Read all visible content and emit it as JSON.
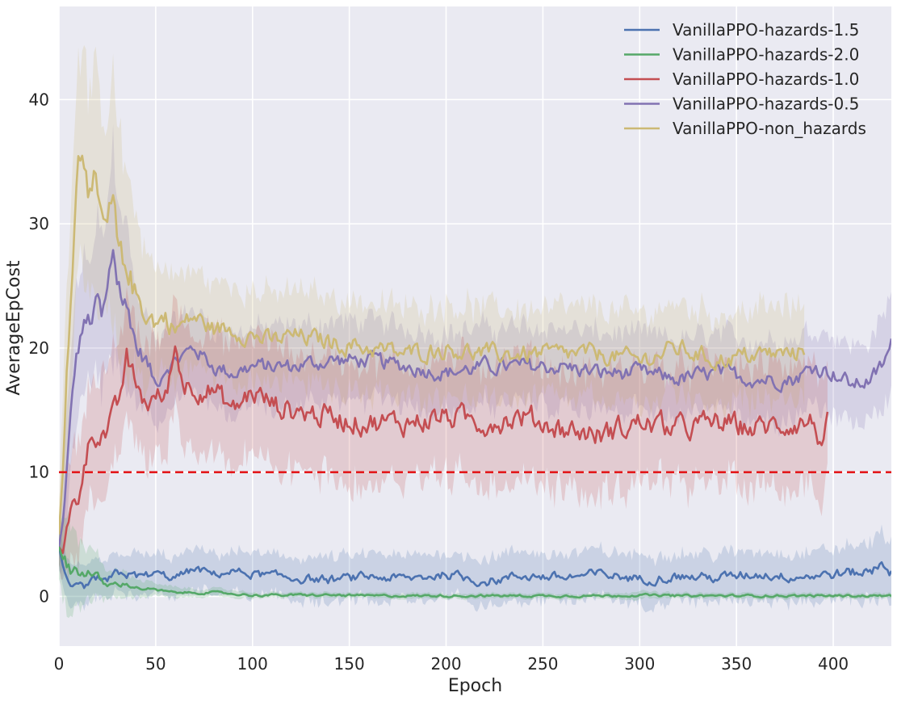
{
  "chart_data": {
    "type": "line",
    "title": "",
    "xlabel": "Epoch",
    "ylabel": "AverageEpCost",
    "xlim": [
      0,
      430
    ],
    "ylim": [
      -4,
      47.5
    ],
    "xticks": [
      0,
      50,
      100,
      150,
      200,
      250,
      300,
      350,
      400
    ],
    "yticks": [
      0,
      10,
      20,
      30,
      40
    ],
    "grid": true,
    "legend_position": "top-right",
    "reference_line": {
      "y": 10,
      "color": "#e3191c",
      "style": "dashed"
    },
    "colors": {
      "background": "#eaeaf2",
      "grid": "#ffffff"
    },
    "series": [
      {
        "name": "VanillaPPO-hazards-1.5",
        "color": "#4c72b0",
        "x": [
          0,
          2,
          4,
          6,
          8,
          10,
          15,
          20,
          25,
          30,
          35,
          40,
          50,
          60,
          70,
          80,
          90,
          100,
          120,
          140,
          160,
          180,
          200,
          220,
          240,
          260,
          280,
          300,
          320,
          340,
          360,
          380,
          400,
          420,
          425,
          430
        ],
        "y": [
          4,
          2.5,
          1.2,
          0.4,
          0.5,
          0.8,
          0.8,
          1.5,
          1.0,
          2.0,
          1.8,
          1.6,
          1.8,
          1.5,
          2.2,
          1.8,
          2.0,
          1.8,
          1.5,
          1.3,
          1.6,
          1.4,
          1.8,
          1.2,
          1.7,
          1.5,
          1.8,
          1.4,
          1.6,
          1.5,
          1.8,
          1.6,
          1.8,
          2.0,
          3.0,
          2.0
        ],
        "band": [
          1.8,
          1.8,
          1.6,
          1.5,
          1.5,
          1.5,
          1.5,
          1.6,
          1.6,
          1.6,
          1.6,
          1.6,
          1.5,
          1.5,
          1.5,
          1.5,
          1.5,
          1.6,
          1.6,
          1.7,
          1.7,
          1.7,
          1.7,
          1.8,
          1.8,
          1.8,
          1.8,
          1.8,
          1.8,
          1.8,
          1.8,
          1.8,
          1.9,
          2.2,
          2.5,
          2.2
        ]
      },
      {
        "name": "VanillaPPO-hazards-2.0",
        "color": "#55a868",
        "x": [
          0,
          2,
          4,
          6,
          8,
          10,
          15,
          20,
          25,
          30,
          35,
          40,
          50,
          60,
          70,
          80,
          90,
          100,
          120,
          140,
          160,
          180,
          200,
          220,
          240,
          260,
          280,
          300,
          320,
          340,
          360,
          380,
          400,
          420,
          430
        ],
        "y": [
          4,
          3.0,
          2.8,
          2.4,
          2.2,
          2.0,
          2.0,
          1.5,
          0.8,
          1.0,
          1.0,
          0.7,
          0.5,
          0.3,
          0.3,
          0.3,
          0.2,
          0.1,
          0.1,
          0.1,
          0.05,
          0.05,
          0.05,
          0.05,
          0.05,
          0.05,
          0.05,
          0.1,
          0.05,
          0.05,
          0.05,
          0.05,
          0.05,
          0.05,
          0.05
        ],
        "band": [
          2.0,
          3.0,
          3.5,
          3.5,
          3.0,
          2.5,
          2.0,
          1.6,
          1.2,
          1.0,
          0.9,
          0.7,
          0.5,
          0.4,
          0.3,
          0.3,
          0.3,
          0.2,
          0.2,
          0.2,
          0.2,
          0.2,
          0.2,
          0.2,
          0.2,
          0.2,
          0.2,
          0.3,
          0.2,
          0.2,
          0.2,
          0.2,
          0.2,
          0.2,
          0.2
        ]
      },
      {
        "name": "VanillaPPO-hazards-1.0",
        "color": "#c44e52",
        "x": [
          0,
          2,
          4,
          6,
          8,
          10,
          12,
          15,
          18,
          20,
          25,
          30,
          35,
          40,
          45,
          50,
          55,
          60,
          65,
          70,
          80,
          90,
          100,
          110,
          120,
          140,
          160,
          180,
          200,
          220,
          240,
          260,
          280,
          300,
          320,
          340,
          360,
          380,
          390,
          395,
          397
        ],
        "y": [
          4,
          3.5,
          5,
          6.5,
          7.5,
          8,
          10,
          12,
          13.2,
          13.2,
          13.2,
          15,
          19,
          17,
          15.5,
          16,
          16,
          20,
          17,
          17,
          16.5,
          15,
          16.5,
          15.5,
          15,
          14.5,
          14,
          14,
          14.5,
          14,
          14.5,
          13.5,
          13,
          14,
          13.5,
          14,
          13.5,
          14,
          14,
          12,
          13.5
        ],
        "band": [
          1.5,
          2.5,
          3.5,
          4.0,
          4.5,
          4.5,
          4.5,
          4.5,
          4.5,
          4.5,
          4.5,
          4.5,
          4.5,
          4.5,
          4.5,
          4.5,
          4.5,
          4.5,
          4.5,
          4.5,
          4.5,
          4.5,
          4.5,
          4.5,
          4.5,
          4.5,
          4.5,
          4.5,
          4.5,
          4.5,
          4.5,
          4.5,
          4.5,
          4.5,
          4.5,
          4.5,
          4.5,
          4.5,
          4.5,
          4.5,
          4.5
        ]
      },
      {
        "name": "VanillaPPO-hazards-0.5",
        "color": "#8172b2",
        "x": [
          0,
          2,
          4,
          6,
          8,
          10,
          12,
          15,
          18,
          20,
          22,
          25,
          28,
          30,
          33,
          35,
          38,
          40,
          45,
          50,
          55,
          60,
          70,
          80,
          90,
          100,
          120,
          140,
          160,
          180,
          200,
          220,
          240,
          260,
          280,
          300,
          320,
          340,
          360,
          380,
          390,
          400,
          410,
          420,
          425,
          430
        ],
        "y": [
          4,
          6,
          10,
          14,
          18,
          20,
          21.5,
          22,
          22.5,
          24,
          22,
          24,
          28,
          26,
          24,
          23,
          22,
          20,
          19,
          17,
          18.5,
          19,
          20,
          18.5,
          18,
          18.5,
          18.5,
          19,
          19,
          18.5,
          18,
          18.5,
          18.5,
          18.5,
          18,
          18,
          17.5,
          18,
          17.5,
          17.5,
          18.5,
          18,
          17,
          17.5,
          18.5,
          20
        ],
        "band": [
          2,
          3,
          4,
          5,
          5,
          5,
          5,
          5,
          5,
          6,
          6,
          7,
          8,
          8,
          7,
          6,
          5,
          4,
          3.5,
          3,
          3,
          3,
          3,
          3,
          3,
          3,
          3,
          3,
          3,
          3,
          3,
          3,
          3,
          3,
          3,
          3,
          3,
          3,
          3,
          3,
          3,
          3,
          3,
          3,
          3.5,
          4
        ]
      },
      {
        "name": "VanillaPPO-non_hazards",
        "color": "#ccb974",
        "x": [
          0,
          2,
          4,
          6,
          8,
          10,
          12,
          14,
          16,
          18,
          20,
          22,
          25,
          28,
          30,
          33,
          35,
          40,
          45,
          50,
          55,
          60,
          70,
          80,
          90,
          100,
          110,
          120,
          140,
          160,
          180,
          200,
          220,
          240,
          260,
          280,
          300,
          320,
          340,
          360,
          380,
          385
        ],
        "y": [
          5,
          10,
          18,
          25,
          31,
          35,
          36.5,
          36,
          33,
          33,
          31,
          29.5,
          29.5,
          31,
          28,
          26,
          27,
          24,
          23,
          22,
          22.5,
          21.5,
          22.5,
          21.5,
          21.5,
          21,
          20.5,
          21,
          20.5,
          20,
          19.5,
          20,
          19.5,
          19.5,
          19.5,
          19.5,
          19,
          20,
          19,
          19.5,
          19.5,
          20
        ],
        "band": [
          3,
          5,
          7,
          8,
          8,
          8,
          8,
          8,
          8,
          8,
          8,
          8,
          8,
          9,
          9,
          8,
          7,
          6,
          5,
          4,
          4,
          4,
          3.5,
          3.5,
          3.5,
          3.5,
          3.5,
          3.5,
          3.5,
          3.5,
          3.5,
          3.5,
          3.5,
          3.5,
          3.5,
          3.5,
          3.5,
          3.5,
          3.5,
          3.5,
          3.5,
          3.5
        ]
      }
    ]
  }
}
